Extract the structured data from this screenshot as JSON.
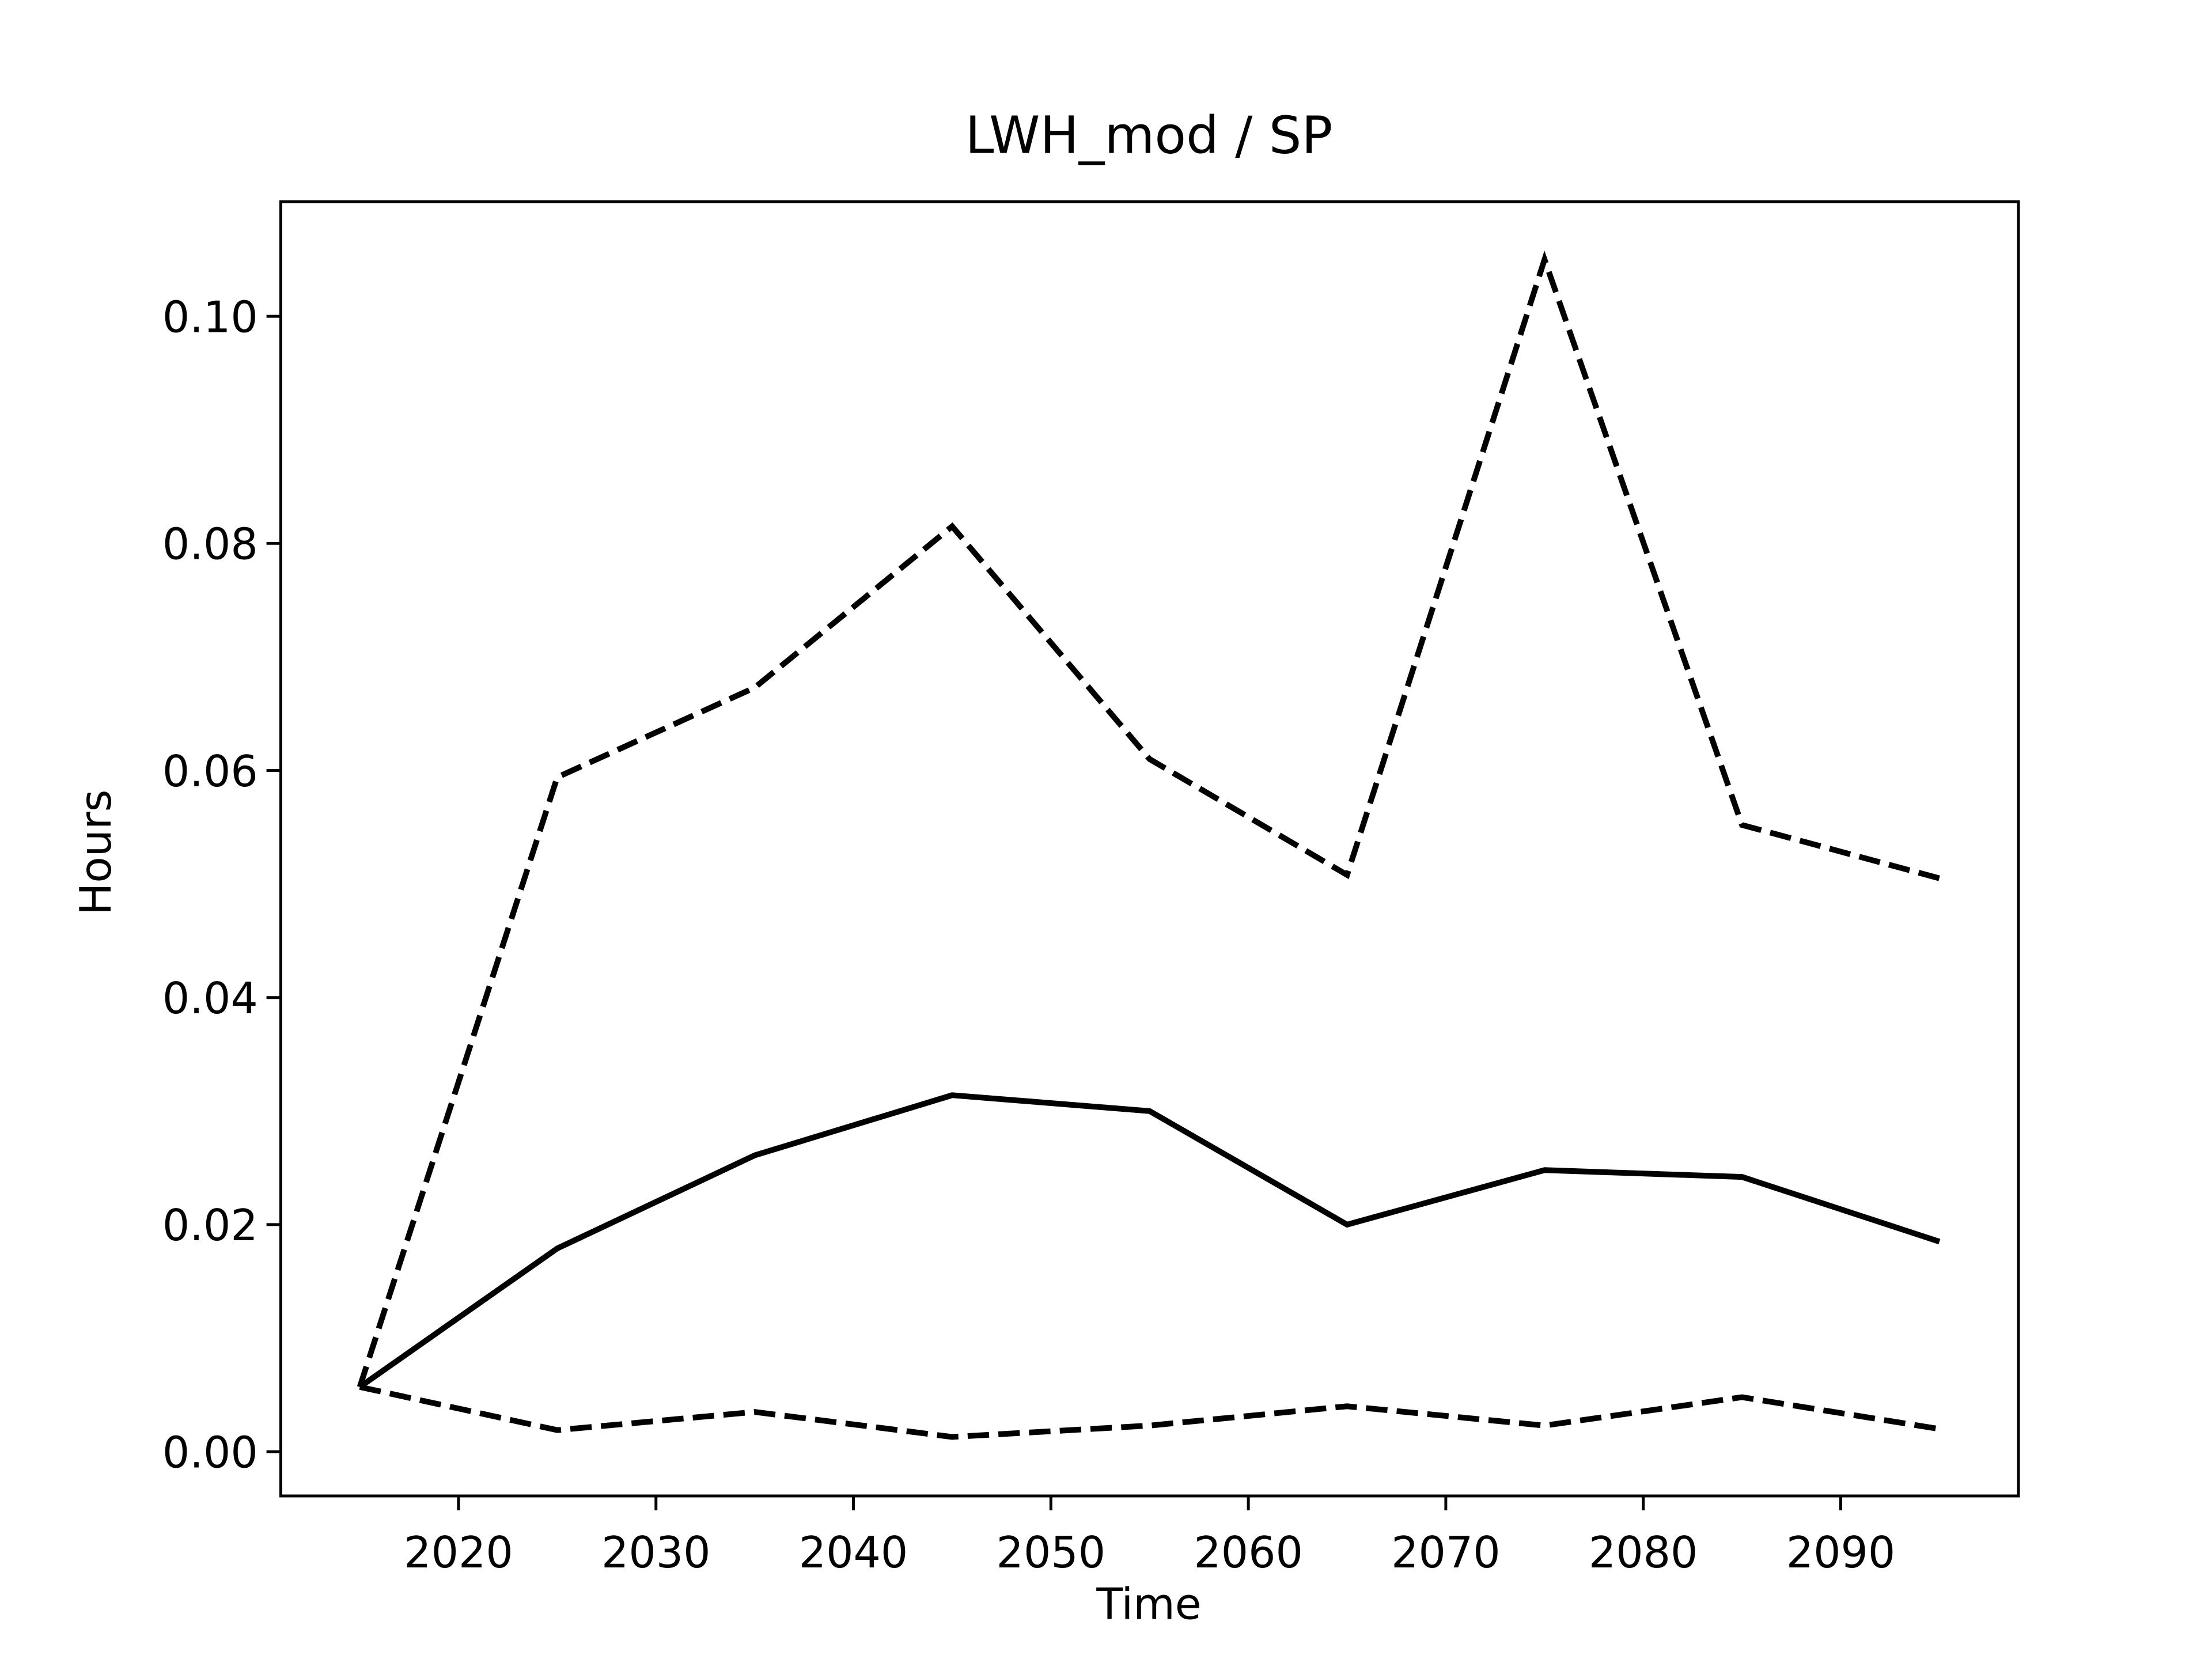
{
  "chart_data": {
    "type": "line",
    "title": "LWH_mod / SP",
    "xlabel": "Time",
    "ylabel": "Hours",
    "x": [
      2015,
      2025,
      2035,
      2045,
      2055,
      2065,
      2075,
      2085,
      2095
    ],
    "series": [
      {
        "color": "#000000",
        "linestyle": "solid",
        "values": [
          0.0057,
          0.0179,
          0.0261,
          0.0314,
          0.03,
          0.02,
          0.0248,
          0.0242,
          0.0185
        ]
      },
      {
        "color": "#000000",
        "linestyle": "dashed",
        "values": [
          0.0057,
          0.0594,
          0.0673,
          0.0815,
          0.061,
          0.0508,
          0.105,
          0.0552,
          0.0505
        ]
      },
      {
        "color": "#000000",
        "linestyle": "dashed",
        "values": [
          0.0057,
          0.0019,
          0.0035,
          0.0013,
          0.0023,
          0.004,
          0.0023,
          0.0048,
          0.002
        ]
      }
    ],
    "xlim": [
      2011,
      2099
    ],
    "ylim": [
      -0.0039,
      0.1101
    ],
    "xticks": [
      2020,
      2030,
      2040,
      2050,
      2060,
      2070,
      2080,
      2090
    ],
    "yticks": [
      {
        "value": 0,
        "label": "0.00"
      },
      {
        "value": 0.02,
        "label": "0.02"
      },
      {
        "value": 0.04,
        "label": "0.04"
      },
      {
        "value": 0.06,
        "label": "0.06"
      },
      {
        "value": 0.08,
        "label": "0.08"
      },
      {
        "value": 0.1,
        "label": "0.10"
      }
    ],
    "grid": false
  }
}
